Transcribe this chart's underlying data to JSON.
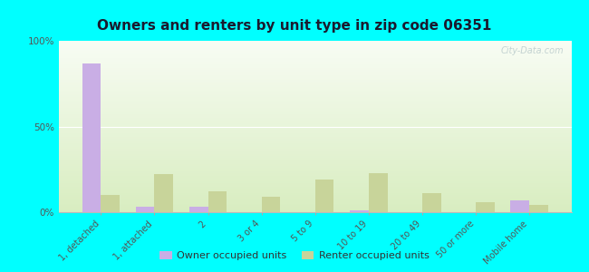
{
  "title": "Owners and renters by unit type in zip code 06351",
  "categories": [
    "1, detached",
    "1, attached",
    "2",
    "3 or 4",
    "5 to 9",
    "10 to 19",
    "20 to 49",
    "50 or more",
    "Mobile home"
  ],
  "owner_values": [
    87,
    3,
    3,
    0,
    0,
    1,
    0,
    0,
    7
  ],
  "renter_values": [
    10,
    22,
    12,
    9,
    19,
    23,
    11,
    6,
    4
  ],
  "owner_color": "#c9aee5",
  "renter_color": "#c8d49a",
  "background_color": "#00ffff",
  "chart_bg_top": "#d8edc0",
  "chart_bg_bottom": "#f8fcf4",
  "ylim": [
    0,
    100
  ],
  "yticks": [
    0,
    50,
    100
  ],
  "ytick_labels": [
    "0%",
    "50%",
    "100%"
  ],
  "bar_width": 0.35,
  "legend_owner": "Owner occupied units",
  "legend_renter": "Renter occupied units",
  "watermark": "City-Data.com"
}
